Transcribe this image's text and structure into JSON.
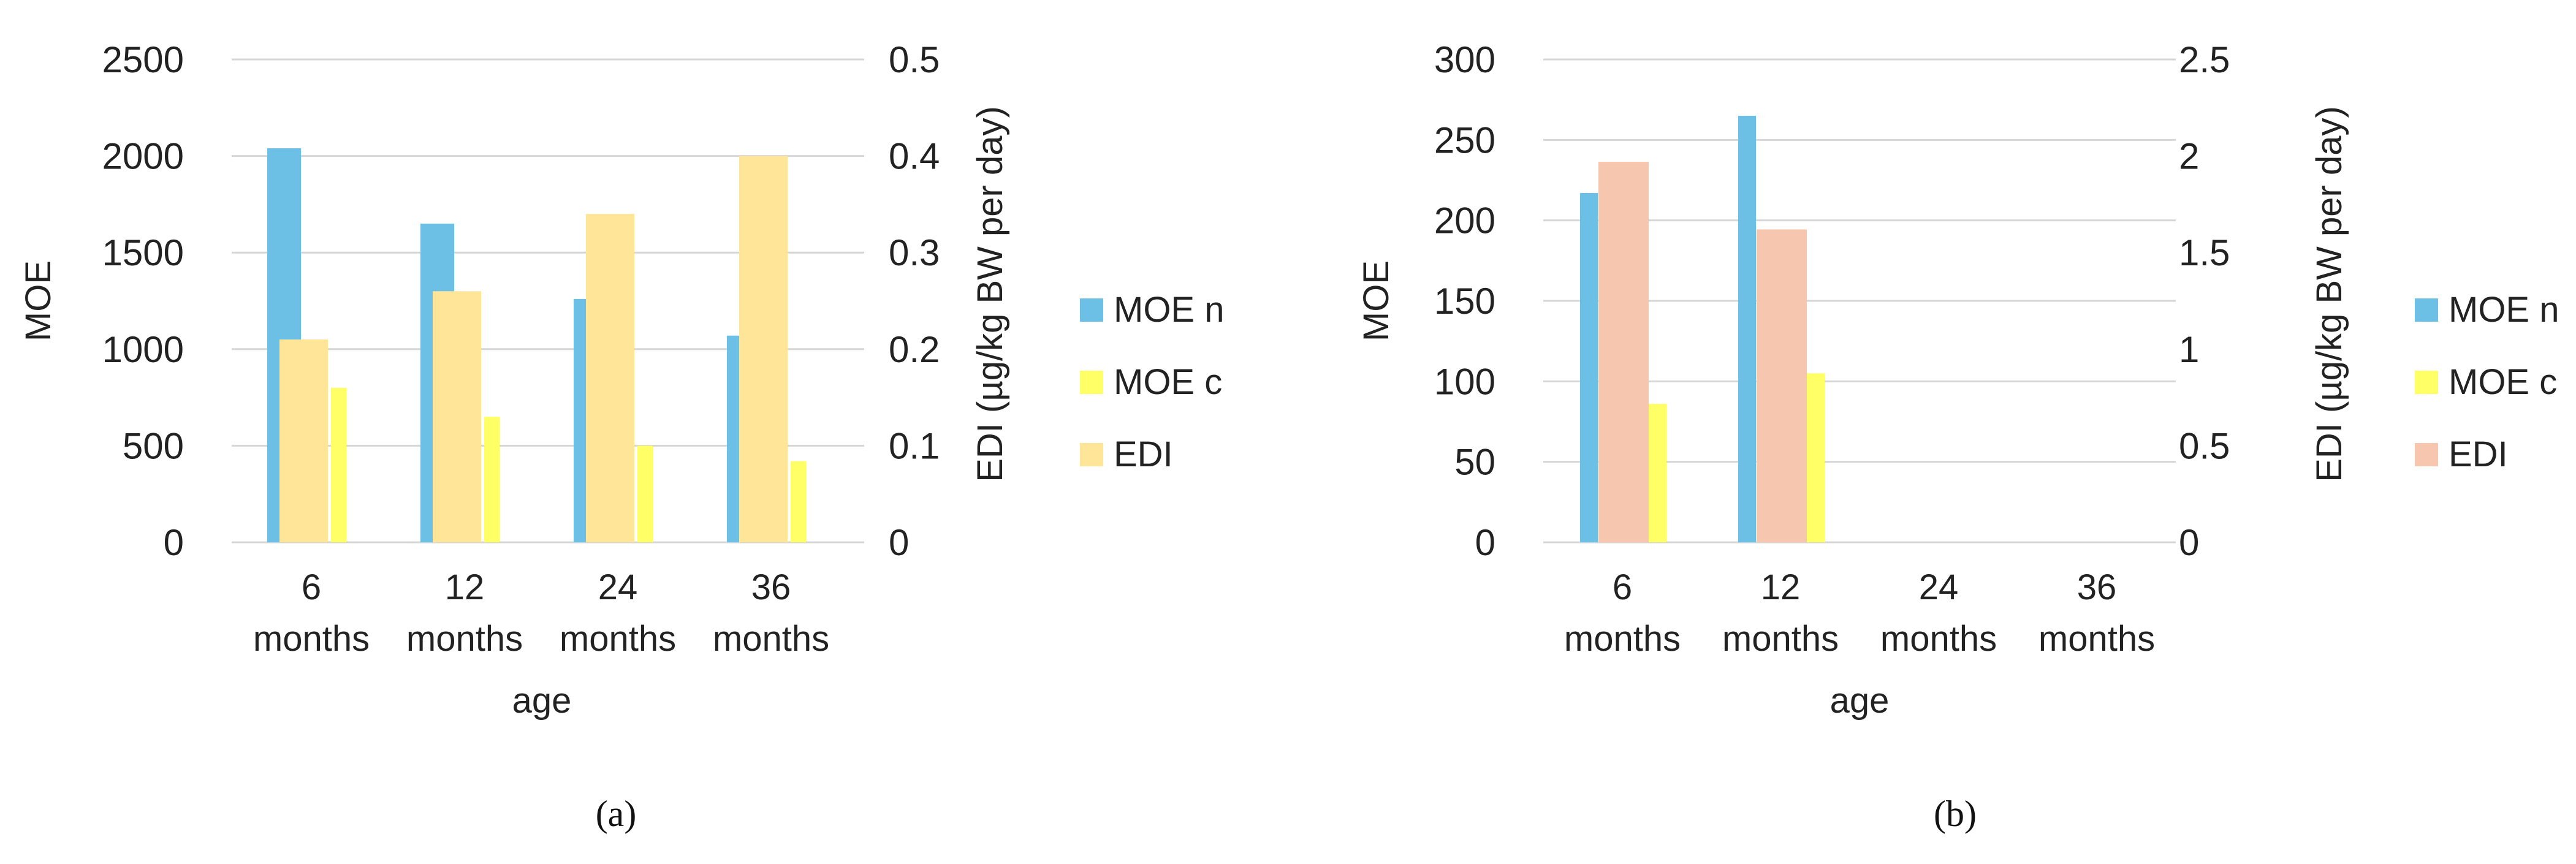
{
  "chart_data": [
    {
      "type": "bar",
      "panel_label": "(a)",
      "categories": [
        [
          "6",
          "months"
        ],
        [
          "12",
          "months"
        ],
        [
          "24",
          "months"
        ],
        [
          "36",
          "months"
        ]
      ],
      "xlabel": "age",
      "ylabel": "MOE",
      "y2label": "EDI (µg/kg BW per day)",
      "ylim": [
        0,
        2500
      ],
      "yticks": [
        0,
        500,
        1000,
        1500,
        2000,
        2500
      ],
      "y2lim": [
        0,
        0.5
      ],
      "y2ticks": [
        "0",
        "0.1",
        "0.2",
        "0.3",
        "0.4",
        "0.5"
      ],
      "grid": true,
      "legend_position": "right",
      "series": [
        {
          "name": "MOE n",
          "axis": "left",
          "color": "#6cc0e6",
          "values": [
            2040,
            1650,
            1260,
            1070
          ]
        },
        {
          "name": "MOE c",
          "axis": "left",
          "color": "#ffff66",
          "values": [
            800,
            650,
            500,
            420
          ]
        },
        {
          "name": "EDI",
          "axis": "right",
          "color": "#ffe598",
          "values": [
            0.21,
            0.26,
            0.34,
            0.4
          ]
        }
      ]
    },
    {
      "type": "bar",
      "panel_label": "(b)",
      "categories": [
        [
          "6",
          "months"
        ],
        [
          "12",
          "months"
        ],
        [
          "24",
          "months"
        ],
        [
          "36",
          "months"
        ]
      ],
      "xlabel": "age",
      "ylabel": "MOE",
      "y2label": "EDI (µg/kg BW per day)",
      "ylim": [
        0,
        300
      ],
      "yticks": [
        0,
        50,
        100,
        150,
        200,
        250,
        300
      ],
      "y2lim": [
        0,
        2.5
      ],
      "y2ticks": [
        "0",
        "0.5",
        "1",
        "1.5",
        "2",
        "2.5"
      ],
      "grid": true,
      "legend_position": "right",
      "series": [
        {
          "name": "MOE n",
          "axis": "left",
          "color": "#6cc0e6",
          "values": [
            217,
            265,
            null,
            null
          ]
        },
        {
          "name": "MOE c",
          "axis": "left",
          "color": "#ffff66",
          "values": [
            86,
            105,
            null,
            null
          ]
        },
        {
          "name": "EDI",
          "axis": "right",
          "color": "#f7c6ae",
          "values": [
            1.97,
            1.62,
            null,
            null
          ]
        }
      ]
    }
  ]
}
